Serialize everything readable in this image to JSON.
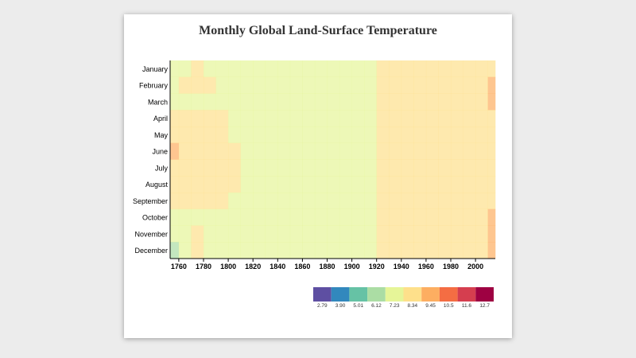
{
  "chart_data": {
    "type": "heatmap",
    "title": "Monthly Global Land-Surface Temperature",
    "x_label": "",
    "y_label": "",
    "x_range": [
      1753,
      2015
    ],
    "x_ticks": [
      "1760",
      "1780",
      "1800",
      "1820",
      "1840",
      "1860",
      "1880",
      "1900",
      "1920",
      "1940",
      "1960",
      "1980",
      "2000"
    ],
    "months": [
      "January",
      "February",
      "March",
      "April",
      "May",
      "June",
      "July",
      "August",
      "September",
      "October",
      "November",
      "December"
    ],
    "decades": [
      1750,
      1760,
      1770,
      1780,
      1790,
      1800,
      1810,
      1820,
      1830,
      1840,
      1850,
      1860,
      1870,
      1880,
      1890,
      1900,
      1910,
      1920,
      1930,
      1940,
      1950,
      1960,
      1970,
      1980,
      1990,
      2000,
      2010
    ],
    "values_note_unit": "°C",
    "values": [
      [
        7.6,
        8.3,
        8.4,
        8.2,
        8.3,
        8.2,
        7.5,
        8.0,
        7.8,
        7.9,
        7.9,
        8.0,
        8.1,
        8.0,
        8.0,
        8.1,
        8.2,
        8.4,
        8.5,
        8.6,
        8.55,
        8.6,
        8.6,
        8.8,
        8.95,
        9.3,
        9.4
      ],
      [
        7.8,
        8.6,
        8.7,
        8.4,
        8.3,
        8.2,
        7.6,
        8.0,
        7.8,
        7.9,
        7.9,
        8.0,
        8.1,
        8.0,
        8.0,
        8.1,
        8.2,
        8.4,
        8.5,
        8.6,
        8.55,
        8.6,
        8.6,
        8.8,
        8.95,
        9.3,
        9.5
      ],
      [
        7.9,
        7.8,
        7.7,
        8.0,
        8.1,
        8.0,
        7.4,
        7.9,
        7.8,
        7.9,
        7.9,
        8.0,
        8.0,
        8.0,
        8.0,
        8.1,
        8.2,
        8.4,
        8.5,
        8.6,
        8.55,
        8.6,
        8.6,
        8.8,
        8.95,
        9.3,
        9.5
      ],
      [
        8.6,
        8.5,
        8.7,
        9.2,
        8.4,
        8.3,
        7.8,
        8.0,
        7.9,
        7.9,
        7.9,
        8.0,
        8.1,
        8.0,
        8.0,
        8.1,
        8.2,
        8.4,
        8.55,
        8.6,
        8.55,
        8.6,
        8.6,
        8.8,
        8.95,
        9.3,
        9.4
      ],
      [
        8.7,
        8.5,
        9.0,
        9.4,
        8.4,
        8.3,
        7.8,
        8.0,
        7.9,
        7.9,
        7.9,
        8.0,
        8.1,
        8.0,
        8.0,
        8.1,
        8.2,
        8.4,
        8.55,
        8.6,
        8.55,
        8.6,
        8.6,
        8.8,
        8.95,
        9.3,
        9.4
      ],
      [
        9.5,
        8.8,
        8.6,
        8.6,
        8.5,
        8.4,
        7.9,
        8.1,
        7.9,
        8.0,
        7.9,
        8.0,
        8.1,
        8.0,
        8.0,
        8.1,
        8.2,
        8.4,
        8.55,
        8.6,
        8.55,
        8.6,
        8.6,
        8.8,
        8.95,
        9.3,
        9.4
      ],
      [
        8.8,
        8.9,
        8.7,
        8.6,
        8.5,
        8.5,
        8.0,
        8.1,
        8.0,
        8.0,
        8.0,
        8.0,
        8.1,
        8.1,
        8.0,
        8.1,
        8.2,
        8.4,
        8.55,
        8.6,
        8.55,
        8.6,
        8.6,
        8.8,
        8.95,
        9.3,
        9.4
      ],
      [
        8.6,
        8.6,
        8.7,
        8.6,
        8.6,
        8.6,
        8.0,
        8.1,
        8.0,
        8.0,
        8.0,
        8.0,
        8.1,
        8.1,
        8.0,
        8.1,
        8.2,
        8.4,
        8.55,
        8.6,
        8.55,
        8.6,
        8.6,
        8.8,
        8.95,
        9.3,
        9.4
      ],
      [
        8.4,
        8.4,
        8.5,
        8.4,
        8.4,
        8.3,
        7.9,
        8.0,
        7.9,
        7.9,
        7.9,
        8.0,
        8.1,
        8.0,
        8.0,
        8.1,
        8.2,
        8.4,
        8.55,
        8.6,
        8.55,
        8.6,
        8.6,
        8.8,
        8.95,
        9.3,
        9.4
      ],
      [
        7.8,
        8.2,
        8.3,
        8.2,
        8.2,
        8.1,
        7.6,
        8.0,
        7.8,
        7.9,
        7.9,
        8.0,
        8.1,
        8.0,
        8.0,
        8.1,
        8.2,
        8.4,
        8.55,
        8.6,
        8.55,
        8.6,
        8.6,
        8.8,
        8.95,
        9.3,
        9.5
      ],
      [
        8.0,
        8.2,
        8.4,
        8.2,
        8.2,
        8.1,
        7.7,
        8.0,
        7.8,
        7.9,
        7.9,
        8.0,
        8.1,
        8.0,
        8.0,
        8.1,
        8.2,
        8.4,
        8.55,
        8.6,
        8.55,
        8.6,
        8.6,
        8.8,
        8.95,
        9.3,
        9.5
      ],
      [
        7.2,
        7.9,
        8.5,
        8.0,
        8.1,
        8.0,
        7.4,
        7.9,
        7.8,
        7.9,
        7.9,
        8.0,
        8.0,
        8.0,
        8.0,
        8.1,
        8.2,
        8.4,
        8.5,
        8.6,
        8.55,
        8.6,
        8.6,
        8.8,
        8.95,
        9.3,
        9.6
      ]
    ],
    "legend": {
      "thresholds": [
        "2.79",
        "3.90",
        "5.01",
        "6.12",
        "7.23",
        "8.34",
        "9.45",
        "10.5",
        "11.6",
        "12.7"
      ],
      "colors": [
        "#5e4fa2",
        "#3288bd",
        "#66c2a5",
        "#abdda4",
        "#e6f598",
        "#fee08b",
        "#fdae61",
        "#f46d43",
        "#d53e4f",
        "#9e0142"
      ],
      "placement": "bottom-right"
    },
    "grid": false
  }
}
